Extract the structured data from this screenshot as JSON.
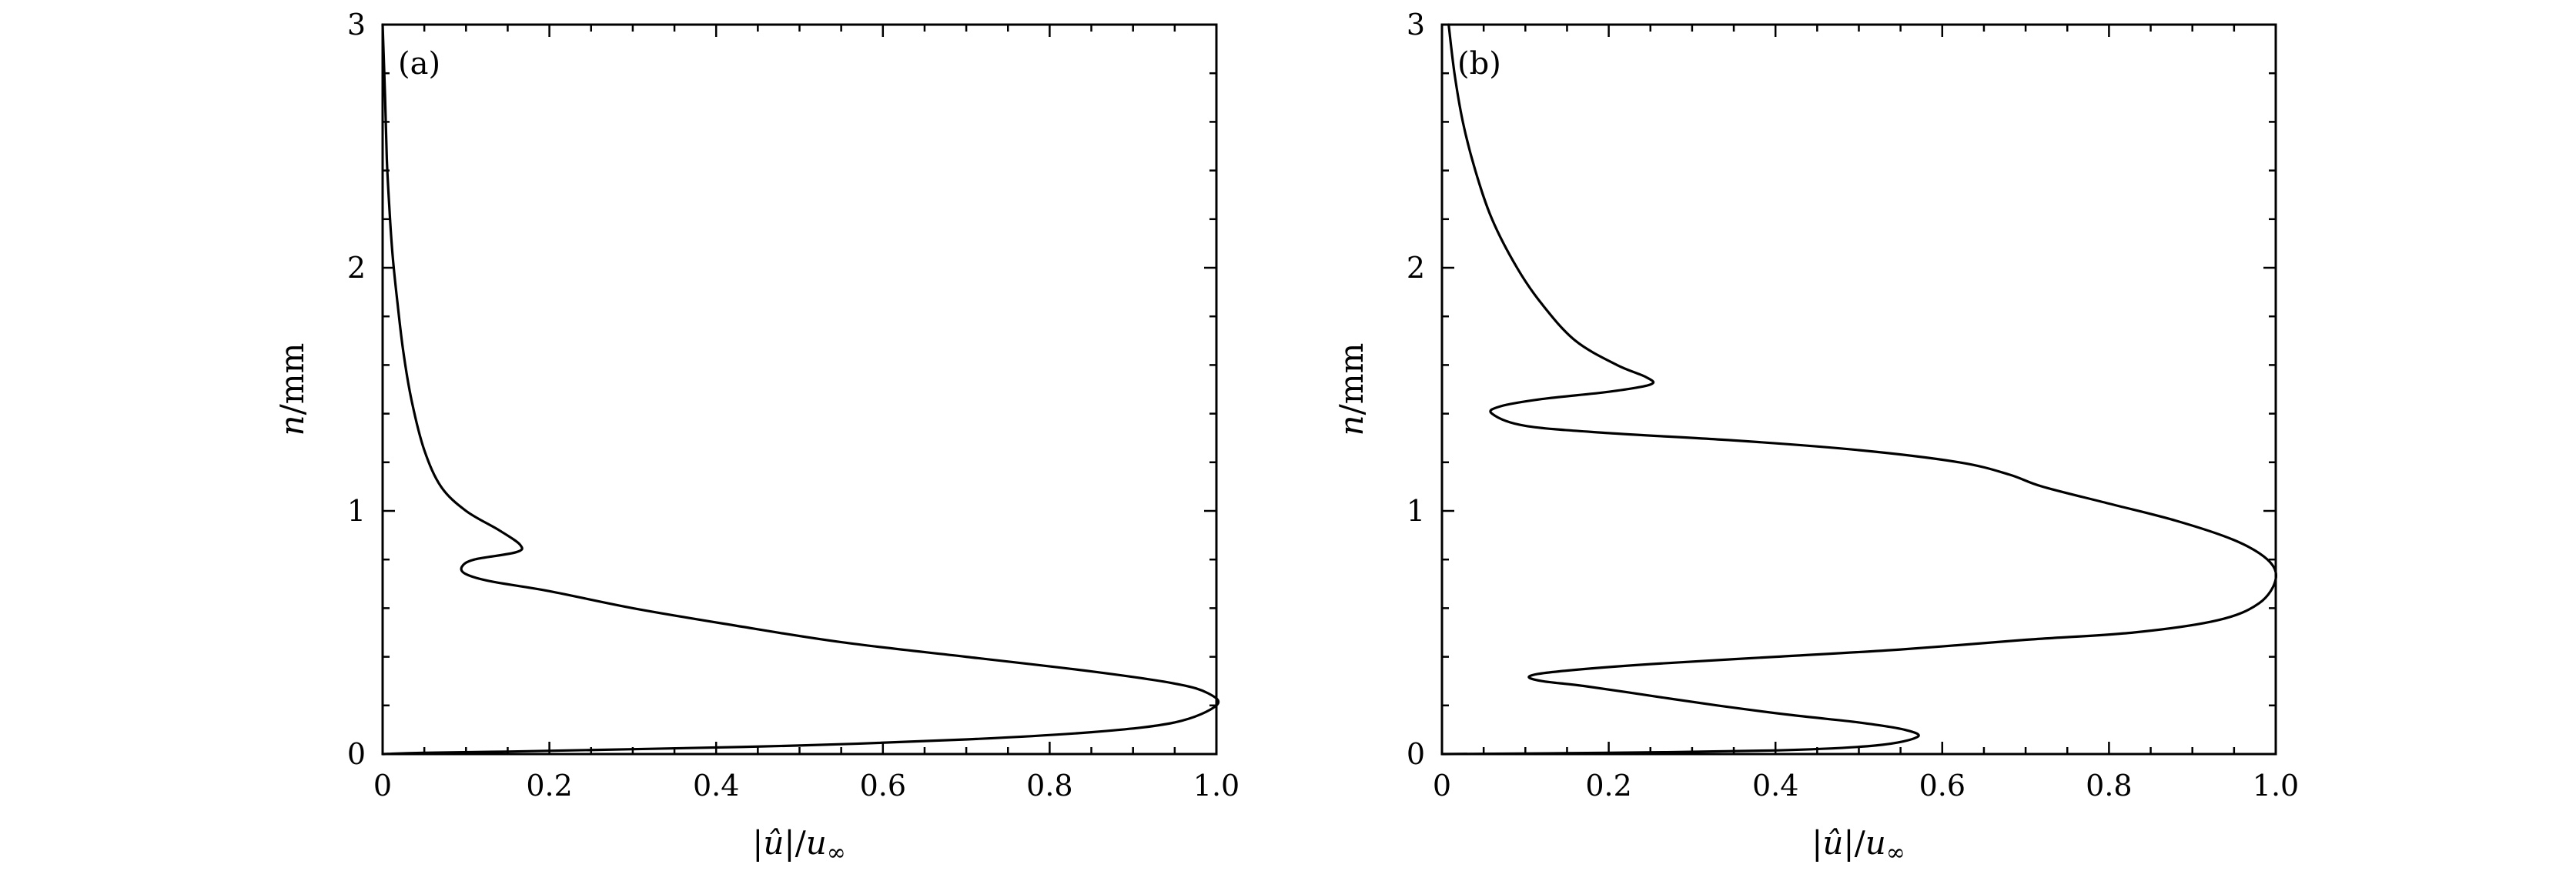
{
  "chart_data": [
    {
      "type": "line",
      "panel_label": "(a)",
      "xlabel_parts": [
        "|",
        "û",
        "|/",
        "u",
        "∞"
      ],
      "ylabel_parts": [
        "n",
        "/mm"
      ],
      "xlim": [
        0,
        1.0
      ],
      "ylim": [
        0,
        3
      ],
      "x_ticks": [
        0,
        0.2,
        0.4,
        0.6,
        0.8,
        1.0
      ],
      "x_tick_labels": [
        "0",
        "0.2",
        "0.4",
        "0.6",
        "0.8",
        "1.0"
      ],
      "y_ticks": [
        0,
        1,
        2,
        3
      ],
      "y_tick_labels": [
        "0",
        "1",
        "2",
        "3"
      ],
      "grid": false,
      "series": [
        {
          "x": [
            0,
            0.05,
            0.15,
            0.3,
            0.5,
            0.7,
            0.85,
            0.95,
            1.0,
            0.99,
            0.95,
            0.85,
            0.7,
            0.55,
            0.42,
            0.3,
            0.2,
            0.13,
            0.1,
            0.095,
            0.11,
            0.16,
            0.165,
            0.14,
            0.1,
            0.07,
            0.05,
            0.035,
            0.025,
            0.018,
            0.012,
            0.008,
            0.005,
            0.003,
            0.0
          ],
          "y": [
            0,
            0.005,
            0.01,
            0.02,
            0.035,
            0.06,
            0.09,
            0.13,
            0.2,
            0.25,
            0.29,
            0.34,
            0.4,
            0.46,
            0.53,
            0.6,
            0.67,
            0.71,
            0.74,
            0.77,
            0.8,
            0.83,
            0.86,
            0.92,
            1.0,
            1.1,
            1.25,
            1.45,
            1.65,
            1.85,
            2.05,
            2.25,
            2.45,
            2.7,
            3.0
          ]
        }
      ]
    },
    {
      "type": "line",
      "panel_label": "(b)",
      "xlabel_parts": [
        "|",
        "û",
        "|/",
        "u",
        "∞"
      ],
      "ylabel_parts": [
        "n",
        "/mm"
      ],
      "xlim": [
        0,
        1.0
      ],
      "ylim": [
        0,
        3
      ],
      "x_ticks": [
        0,
        0.2,
        0.4,
        0.6,
        0.8,
        1.0
      ],
      "x_tick_labels": [
        "0",
        "0.2",
        "0.4",
        "0.6",
        "0.8",
        "1.0"
      ],
      "y_ticks": [
        0,
        1,
        2,
        3
      ],
      "y_tick_labels": [
        "0",
        "1",
        "2",
        "3"
      ],
      "grid": false,
      "series": [
        {
          "x": [
            0,
            0.2,
            0.4,
            0.52,
            0.57,
            0.555,
            0.5,
            0.42,
            0.33,
            0.25,
            0.17,
            0.12,
            0.105,
            0.14,
            0.25,
            0.4,
            0.55,
            0.7,
            0.83,
            0.93,
            0.98,
            1.0,
            0.99,
            0.95,
            0.88,
            0.8,
            0.72,
            0.68,
            0.62,
            0.5,
            0.35,
            0.2,
            0.1,
            0.06,
            0.07,
            0.12,
            0.2,
            0.25,
            0.245,
            0.21,
            0.16,
            0.12,
            0.09,
            0.06,
            0.04,
            0.025,
            0.015,
            0.008
          ],
          "y": [
            0,
            0.005,
            0.015,
            0.035,
            0.07,
            0.1,
            0.13,
            0.16,
            0.2,
            0.24,
            0.28,
            0.3,
            0.32,
            0.34,
            0.37,
            0.4,
            0.43,
            0.47,
            0.5,
            0.55,
            0.62,
            0.72,
            0.8,
            0.88,
            0.96,
            1.03,
            1.1,
            1.15,
            1.2,
            1.25,
            1.29,
            1.32,
            1.35,
            1.4,
            1.43,
            1.46,
            1.49,
            1.52,
            1.55,
            1.6,
            1.7,
            1.85,
            2.0,
            2.2,
            2.4,
            2.6,
            2.8,
            3.0
          ]
        }
      ]
    }
  ]
}
